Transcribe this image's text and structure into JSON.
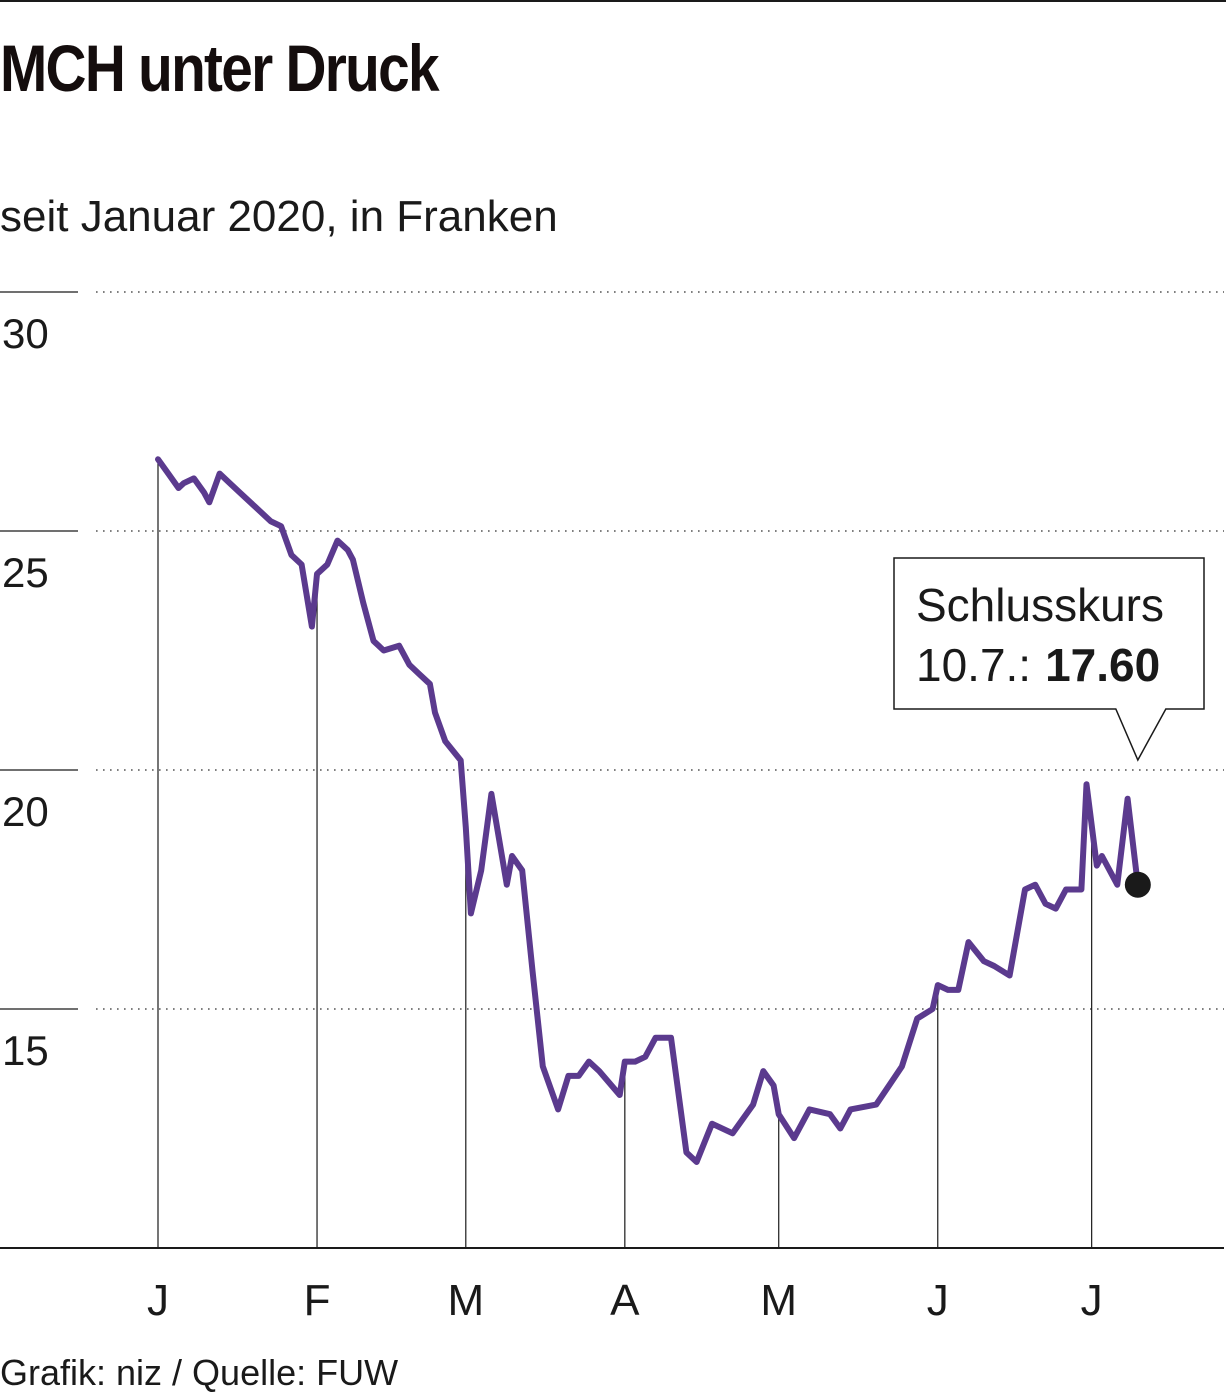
{
  "title": "MCH unter Druck",
  "subtitle": "seit Januar 2020, in Franken",
  "source": "Grafik: niz / Quelle: FUW",
  "colors": {
    "line": "#5b3a8e",
    "text": "#1a1a1a",
    "marker": "#1a1a1a"
  },
  "callout": {
    "label": "Schlusskurs",
    "date": "10.7.:",
    "value": "17.60"
  },
  "chart_data": {
    "type": "line",
    "title": "MCH unter Druck",
    "subtitle": "seit Januar 2020, in Franken",
    "xlabel": "",
    "ylabel": "",
    "ylim": [
      10,
      30
    ],
    "yticks": [
      15,
      20,
      25,
      30
    ],
    "ytick_labels": [
      "15",
      "20",
      "25",
      "30"
    ],
    "grid": "horizontal dotted",
    "xticks": [
      {
        "label": "J",
        "date": "2020-01-01"
      },
      {
        "label": "F",
        "date": "2020-02-01"
      },
      {
        "label": "M",
        "date": "2020-03-01"
      },
      {
        "label": "A",
        "date": "2020-04-01"
      },
      {
        "label": "M",
        "date": "2020-05-01"
      },
      {
        "label": "J",
        "date": "2020-06-01"
      },
      {
        "label": "J",
        "date": "2020-07-01"
      }
    ],
    "xlim": [
      "2020-01-01",
      "2020-07-28"
    ],
    "series": [
      {
        "values": [
          [
            "2020-01-01",
            26.5
          ],
          [
            "2020-01-03",
            26.2
          ],
          [
            "2020-01-05",
            25.9
          ],
          [
            "2020-01-06",
            26.0
          ],
          [
            "2020-01-08",
            26.1
          ],
          [
            "2020-01-10",
            25.8
          ],
          [
            "2020-01-11",
            25.6
          ],
          [
            "2020-01-13",
            26.2
          ],
          [
            "2020-01-15",
            26.0
          ],
          [
            "2020-01-17",
            25.8
          ],
          [
            "2020-01-20",
            25.5
          ],
          [
            "2020-01-23",
            25.2
          ],
          [
            "2020-01-25",
            25.1
          ],
          [
            "2020-01-27",
            24.5
          ],
          [
            "2020-01-29",
            24.3
          ],
          [
            "2020-01-31",
            23.0
          ],
          [
            "2020-02-01",
            24.1
          ],
          [
            "2020-02-03",
            24.3
          ],
          [
            "2020-02-05",
            24.8
          ],
          [
            "2020-02-07",
            24.6
          ],
          [
            "2020-02-08",
            24.4
          ],
          [
            "2020-02-10",
            23.5
          ],
          [
            "2020-02-12",
            22.7
          ],
          [
            "2020-02-14",
            22.5
          ],
          [
            "2020-02-17",
            22.6
          ],
          [
            "2020-02-19",
            22.2
          ],
          [
            "2020-02-21",
            22.0
          ],
          [
            "2020-02-23",
            21.8
          ],
          [
            "2020-02-24",
            21.2
          ],
          [
            "2020-02-26",
            20.6
          ],
          [
            "2020-02-29",
            20.2
          ],
          [
            "2020-03-01",
            18.8
          ],
          [
            "2020-03-02",
            17.0
          ],
          [
            "2020-03-04",
            17.9
          ],
          [
            "2020-03-06",
            19.5
          ],
          [
            "2020-03-09",
            17.6
          ],
          [
            "2020-03-10",
            18.2
          ],
          [
            "2020-03-12",
            17.9
          ],
          [
            "2020-03-14",
            15.8
          ],
          [
            "2020-03-16",
            13.8
          ],
          [
            "2020-03-19",
            12.9
          ],
          [
            "2020-03-21",
            13.6
          ],
          [
            "2020-03-23",
            13.6
          ],
          [
            "2020-03-25",
            13.9
          ],
          [
            "2020-03-27",
            13.7
          ],
          [
            "2020-03-31",
            13.2
          ],
          [
            "2020-04-01",
            13.9
          ],
          [
            "2020-04-03",
            13.9
          ],
          [
            "2020-04-05",
            14.0
          ],
          [
            "2020-04-07",
            14.4
          ],
          [
            "2020-04-10",
            14.4
          ],
          [
            "2020-04-13",
            12.0
          ],
          [
            "2020-04-15",
            11.8
          ],
          [
            "2020-04-18",
            12.6
          ],
          [
            "2020-04-22",
            12.4
          ],
          [
            "2020-04-26",
            13.0
          ],
          [
            "2020-04-28",
            13.7
          ],
          [
            "2020-04-30",
            13.4
          ],
          [
            "2020-05-01",
            12.8
          ],
          [
            "2020-05-04",
            12.3
          ],
          [
            "2020-05-07",
            12.9
          ],
          [
            "2020-05-11",
            12.8
          ],
          [
            "2020-05-13",
            12.5
          ],
          [
            "2020-05-15",
            12.9
          ],
          [
            "2020-05-20",
            13.0
          ],
          [
            "2020-05-25",
            13.8
          ],
          [
            "2020-05-28",
            14.8
          ],
          [
            "2020-05-31",
            15.0
          ],
          [
            "2020-06-01",
            15.5
          ],
          [
            "2020-06-03",
            15.4
          ],
          [
            "2020-06-05",
            15.4
          ],
          [
            "2020-06-07",
            16.4
          ],
          [
            "2020-06-10",
            16.0
          ],
          [
            "2020-06-12",
            15.9
          ],
          [
            "2020-06-15",
            15.7
          ],
          [
            "2020-06-18",
            17.5
          ],
          [
            "2020-06-20",
            17.6
          ],
          [
            "2020-06-22",
            17.2
          ],
          [
            "2020-06-24",
            17.1
          ],
          [
            "2020-06-26",
            17.5
          ],
          [
            "2020-06-29",
            17.5
          ],
          [
            "2020-06-30",
            19.7
          ],
          [
            "2020-07-02",
            18.0
          ],
          [
            "2020-07-03",
            18.2
          ],
          [
            "2020-07-06",
            17.6
          ],
          [
            "2020-07-08",
            19.4
          ],
          [
            "2020-07-10",
            17.6
          ]
        ]
      }
    ]
  }
}
